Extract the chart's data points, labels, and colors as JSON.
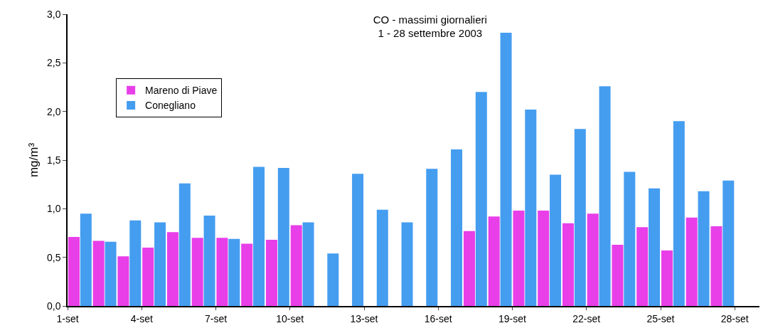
{
  "chart_data": {
    "type": "bar",
    "title": "CO - massimi giornalieri\n1 - 28 settembre 2003",
    "ylabel": "mg/m³",
    "x": [
      "2003-09-01T12:00",
      "2003-09-02T12:00",
      "2003-09-03T12:00",
      "2003-09-04T12:00",
      "2003-09-05T12:00",
      "2003-09-06T12:00",
      "2003-09-07T12:00",
      "2003-09-08T12:00",
      "2003-09-09T12:00",
      "2003-09-10T12:00",
      "2003-09-11T12:00",
      "2003-09-12T12:00",
      "2003-09-13T12:00",
      "2003-09-14T12:00",
      "2003-09-15T12:00",
      "2003-09-16T12:00",
      "2003-09-17T12:00",
      "2003-09-18T12:00",
      "2003-09-19T12:00",
      "2003-09-20T12:00",
      "2003-09-21T12:00",
      "2003-09-22T12:00",
      "2003-09-23T12:00",
      "2003-09-24T12:00",
      "2003-09-25T12:00",
      "2003-09-26T12:00",
      "2003-09-27T12:00"
    ],
    "series": [
      {
        "name": "Mareno di Piave",
        "color": "#e83fe8",
        "values": [
          0.71,
          0.67,
          0.51,
          0.6,
          0.76,
          0.7,
          0.7,
          0.64,
          0.68,
          0.83,
          null,
          null,
          null,
          null,
          null,
          null,
          0.77,
          0.92,
          0.98,
          0.98,
          0.85,
          0.95,
          0.63,
          0.81,
          0.57,
          0.91,
          0.82
        ]
      },
      {
        "name": "Conegliano",
        "color": "#459df0",
        "values": [
          0.95,
          0.66,
          0.88,
          0.86,
          1.26,
          0.93,
          0.69,
          1.43,
          1.42,
          0.86,
          0.54,
          1.36,
          0.99,
          0.86,
          1.41,
          1.61,
          2.2,
          2.81,
          2.02,
          1.35,
          1.82,
          2.26,
          1.38,
          1.21,
          1.9,
          1.18,
          1.29
        ]
      }
    ],
    "xlim": [
      "2003-09-01",
      "2003-09-29"
    ],
    "xticks": [
      {
        "value": "2003-09-01",
        "label": "1-set"
      },
      {
        "value": "2003-09-04",
        "label": "4-set"
      },
      {
        "value": "2003-09-07",
        "label": "7-set"
      },
      {
        "value": "2003-09-10",
        "label": "10-set"
      },
      {
        "value": "2003-09-13",
        "label": "13-set"
      },
      {
        "value": "2003-09-16",
        "label": "16-set"
      },
      {
        "value": "2003-09-19",
        "label": "19-set"
      },
      {
        "value": "2003-09-22",
        "label": "22-set"
      },
      {
        "value": "2003-09-25",
        "label": "25-set"
      },
      {
        "value": "2003-09-28",
        "label": "28-set"
      }
    ],
    "ylim": [
      0,
      3
    ],
    "yticks": [
      {
        "value": 0,
        "label": "0,0"
      },
      {
        "value": 0.5,
        "label": "0,5"
      },
      {
        "value": 1,
        "label": "1,0"
      },
      {
        "value": 1.5,
        "label": "1,5"
      },
      {
        "value": 2,
        "label": "2,0"
      },
      {
        "value": 2.5,
        "label": "2,5"
      },
      {
        "value": 3,
        "label": "3,0"
      }
    ],
    "legend": "top left"
  }
}
